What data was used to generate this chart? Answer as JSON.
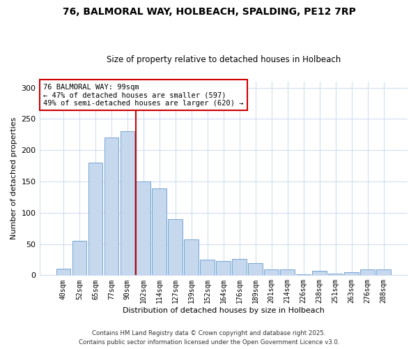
{
  "title1": "76, BALMORAL WAY, HOLBEACH, SPALDING, PE12 7RP",
  "title2": "Size of property relative to detached houses in Holbeach",
  "xlabel": "Distribution of detached houses by size in Holbeach",
  "ylabel": "Number of detached properties",
  "bar_labels": [
    "40sqm",
    "52sqm",
    "65sqm",
    "77sqm",
    "90sqm",
    "102sqm",
    "114sqm",
    "127sqm",
    "139sqm",
    "152sqm",
    "164sqm",
    "176sqm",
    "189sqm",
    "201sqm",
    "214sqm",
    "226sqm",
    "238sqm",
    "251sqm",
    "263sqm",
    "276sqm",
    "288sqm"
  ],
  "bar_values": [
    10,
    55,
    180,
    220,
    230,
    150,
    139,
    90,
    57,
    25,
    23,
    26,
    19,
    9,
    9,
    2,
    7,
    3,
    5,
    9,
    9
  ],
  "bar_color": "#c5d8ee",
  "bar_edgecolor": "#6699cc",
  "vline_color": "#cc0000",
  "annotation_title": "76 BALMORAL WAY: 99sqm",
  "annotation_line1": "← 47% of detached houses are smaller (597)",
  "annotation_line2": "49% of semi-detached houses are larger (620) →",
  "annotation_box_facecolor": "#ffffff",
  "annotation_box_edgecolor": "#cc0000",
  "ylim": [
    0,
    310
  ],
  "yticks": [
    0,
    50,
    100,
    150,
    200,
    250,
    300
  ],
  "footer1": "Contains HM Land Registry data © Crown copyright and database right 2025.",
  "footer2": "Contains public sector information licensed under the Open Government Licence v3.0.",
  "background_color": "#ffffff",
  "plot_background": "#ffffff",
  "grid_color": "#d0ddf0"
}
